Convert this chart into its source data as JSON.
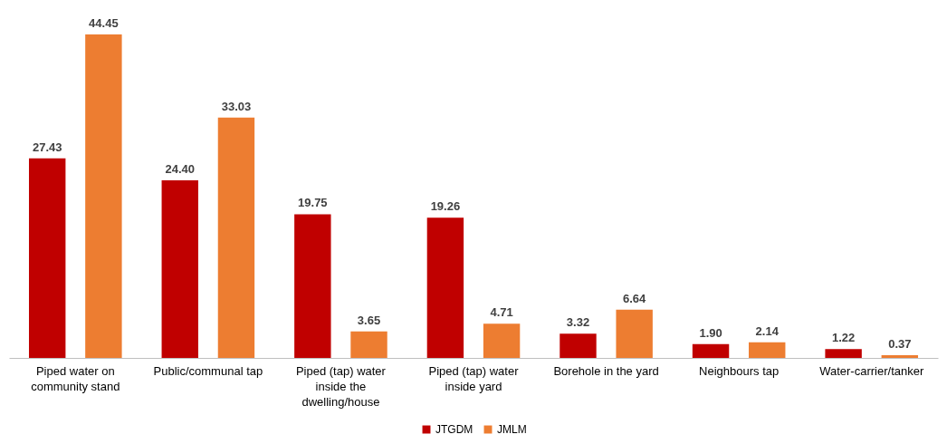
{
  "chart_data": {
    "type": "bar",
    "categories": [
      "Piped water on community stand",
      "Public/communal tap",
      "Piped (tap) water inside the dwelling/house",
      "Piped (tap) water inside yard",
      "Borehole in the yard",
      "Neighbours tap",
      "Water-carrier/tanker"
    ],
    "series": [
      {
        "name": "JTGDM",
        "color": "#c00000",
        "values": [
          27.43,
          24.4,
          19.75,
          19.26,
          3.32,
          1.9,
          1.22
        ],
        "value_labels": [
          "27.43",
          "24.40",
          "19.75",
          "19.26",
          "3.32",
          "1.90",
          "1.22"
        ]
      },
      {
        "name": "JMLM",
        "color": "#ed7d31",
        "values": [
          44.45,
          33.03,
          3.65,
          4.71,
          6.64,
          2.14,
          0.37
        ],
        "value_labels": [
          "44.45",
          "33.03",
          "3.65",
          "4.71",
          "6.64",
          "2.14",
          "0.37"
        ]
      }
    ],
    "legend": "bottom"
  }
}
